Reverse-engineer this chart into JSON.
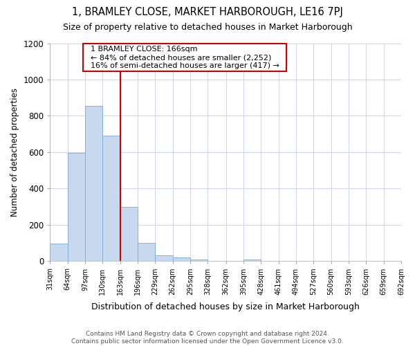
{
  "title": "1, BRAMLEY CLOSE, MARKET HARBOROUGH, LE16 7PJ",
  "subtitle": "Size of property relative to detached houses in Market Harborough",
  "xlabel": "Distribution of detached houses by size in Market Harborough",
  "ylabel": "Number of detached properties",
  "annotation_line1": "1 BRAMLEY CLOSE: 166sqm",
  "annotation_line2": "← 84% of detached houses are smaller (2,252)",
  "annotation_line3": "16% of semi-detached houses are larger (417) →",
  "bar_edges": [
    31,
    64,
    97,
    130,
    163,
    196,
    229,
    262,
    295,
    328,
    362,
    395,
    428,
    461,
    494,
    527,
    560,
    593,
    626,
    659,
    692
  ],
  "bar_heights": [
    95,
    595,
    855,
    690,
    300,
    100,
    30,
    20,
    10,
    0,
    0,
    10,
    0,
    0,
    0,
    0,
    0,
    0,
    0,
    0
  ],
  "bar_color": "#c8d8ee",
  "bar_edgecolor": "#7baad4",
  "vline_color": "#cc0000",
  "vline_x": 163,
  "ylim": [
    0,
    1200
  ],
  "yticks": [
    0,
    200,
    400,
    600,
    800,
    1000,
    1200
  ],
  "background_color": "#ffffff",
  "grid_color": "#d0d8e8",
  "footer_line1": "Contains HM Land Registry data © Crown copyright and database right 2024.",
  "footer_line2": "Contains public sector information licensed under the Open Government Licence v3.0."
}
